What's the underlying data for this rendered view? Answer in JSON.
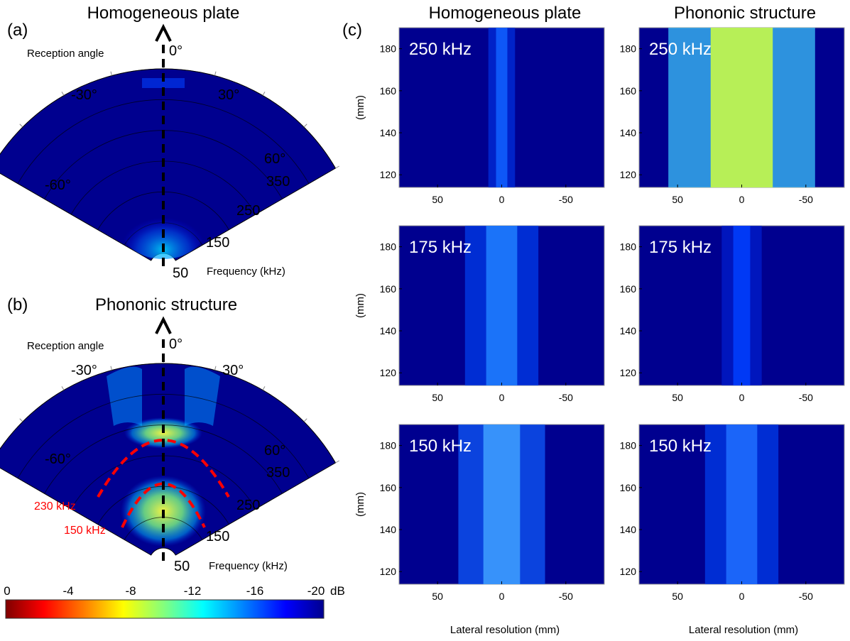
{
  "panels": {
    "a": {
      "letter": "(a)",
      "title": "Homogeneous plate",
      "reception_label": "Reception angle",
      "angle_labels": [
        "-60°",
        "-30°",
        "0°",
        "30°",
        "60°"
      ],
      "freq_labels": [
        "50",
        "150",
        "250",
        "350"
      ],
      "freq_axis_label": "Frequency (kHz)"
    },
    "b": {
      "letter": "(b)",
      "title": "Phononic structure",
      "reception_label": "Reception angle",
      "angle_labels": [
        "-60°",
        "-30°",
        "0°",
        "30°",
        "60°"
      ],
      "freq_labels": [
        "50",
        "150",
        "250",
        "350"
      ],
      "freq_axis_label": "Frequency (kHz)",
      "annotations": [
        "230 kHz",
        "150 kHz"
      ],
      "annotation_color": "#ff0000"
    },
    "c": {
      "letter": "(c)",
      "col_titles": [
        "Homogeneous plate",
        "Phononic structure"
      ],
      "y_label": "(mm)",
      "x_label": "Lateral resolution (mm)",
      "y_ticks": [
        "180",
        "160",
        "140",
        "120"
      ],
      "x_ticks": [
        "50",
        "0",
        "-50"
      ],
      "row_freqs": [
        "250 kHz",
        "175 kHz",
        "150 kHz"
      ]
    }
  },
  "colorbar": {
    "ticks": [
      "0",
      "-4",
      "-8",
      "-12",
      "-16",
      "-20"
    ],
    "unit": "dB",
    "colors": [
      "#7f0000",
      "#ff0000",
      "#ff8000",
      "#ffff00",
      "#80ff80",
      "#00ffff",
      "#0080ff",
      "#0000ff",
      "#00008f"
    ]
  },
  "chart_data": [
    {
      "type": "heatmap",
      "title": "Homogeneous plate",
      "description_axes": "polar: angle vs frequency",
      "xlabel": "Reception angle",
      "ylabel": "Frequency (kHz)",
      "angle_range": [
        -60,
        60
      ],
      "freq_range": [
        50,
        350
      ],
      "color_range_db": [
        0,
        -20
      ]
    },
    {
      "type": "heatmap",
      "title": "Phononic structure",
      "xlabel": "Reception angle",
      "ylabel": "Frequency (kHz)",
      "angle_range": [
        -60,
        60
      ],
      "freq_range": [
        50,
        350
      ],
      "annotations": [
        "230 kHz",
        "150 kHz"
      ],
      "color_range_db": [
        0,
        -20
      ]
    },
    {
      "type": "heatmap",
      "title": "Homogeneous plate 250 kHz",
      "xlabel": "Lateral resolution (mm)",
      "ylabel": "(mm)",
      "xlim": [
        80,
        -80
      ],
      "ylim": [
        114,
        190
      ]
    },
    {
      "type": "heatmap",
      "title": "Phononic structure 250 kHz",
      "xlabel": "Lateral resolution (mm)",
      "ylabel": "(mm)",
      "xlim": [
        80,
        -80
      ],
      "ylim": [
        114,
        190
      ]
    },
    {
      "type": "heatmap",
      "title": "Homogeneous plate 175 kHz",
      "xlabel": "Lateral resolution (mm)",
      "ylabel": "(mm)",
      "xlim": [
        80,
        -80
      ],
      "ylim": [
        114,
        190
      ]
    },
    {
      "type": "heatmap",
      "title": "Phononic structure 175 kHz",
      "xlabel": "Lateral resolution (mm)",
      "ylabel": "(mm)",
      "xlim": [
        80,
        -80
      ],
      "ylim": [
        114,
        190
      ]
    },
    {
      "type": "heatmap",
      "title": "Homogeneous plate 150 kHz",
      "xlabel": "Lateral resolution (mm)",
      "ylabel": "(mm)",
      "xlim": [
        80,
        -80
      ],
      "ylim": [
        114,
        190
      ]
    },
    {
      "type": "heatmap",
      "title": "Phononic structure 150 kHz",
      "xlabel": "Lateral resolution (mm)",
      "ylabel": "(mm)",
      "xlim": [
        80,
        -80
      ],
      "ylim": [
        114,
        190
      ]
    }
  ]
}
